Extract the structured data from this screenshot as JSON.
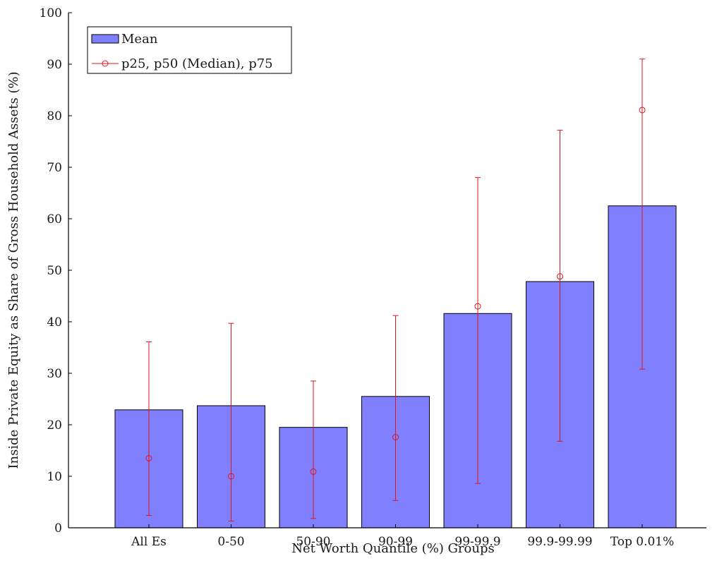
{
  "chart_data": {
    "type": "bar",
    "categories": [
      "All Es",
      "0-50",
      "50-90",
      "90-99",
      "99-99.9",
      "99.9-99.99",
      "Top 0.01%"
    ],
    "series": [
      {
        "name": "Mean",
        "values": [
          22.9,
          23.7,
          19.5,
          25.5,
          41.6,
          47.8,
          62.5
        ],
        "color": "#8080ff"
      },
      {
        "name": "p25, p50 (Median), p75",
        "p25": [
          2.4,
          1.3,
          1.8,
          5.3,
          8.6,
          16.8,
          30.8
        ],
        "p50": [
          13.5,
          10.0,
          10.9,
          17.6,
          43.0,
          48.8,
          81.1
        ],
        "p75": [
          36.1,
          39.7,
          28.5,
          41.2,
          68.0,
          77.2,
          91.0
        ],
        "color": "#e0141e"
      }
    ],
    "xlabel": "Net Worth Quantile (%) Groups",
    "ylabel": "Inside Private Equity as Share of Gross Household Assets (%)",
    "ylim": [
      0,
      100
    ],
    "yticks": [
      0,
      10,
      20,
      30,
      40,
      50,
      60,
      70,
      80,
      90,
      100
    ],
    "grid": false,
    "legend_position": "top-left"
  }
}
